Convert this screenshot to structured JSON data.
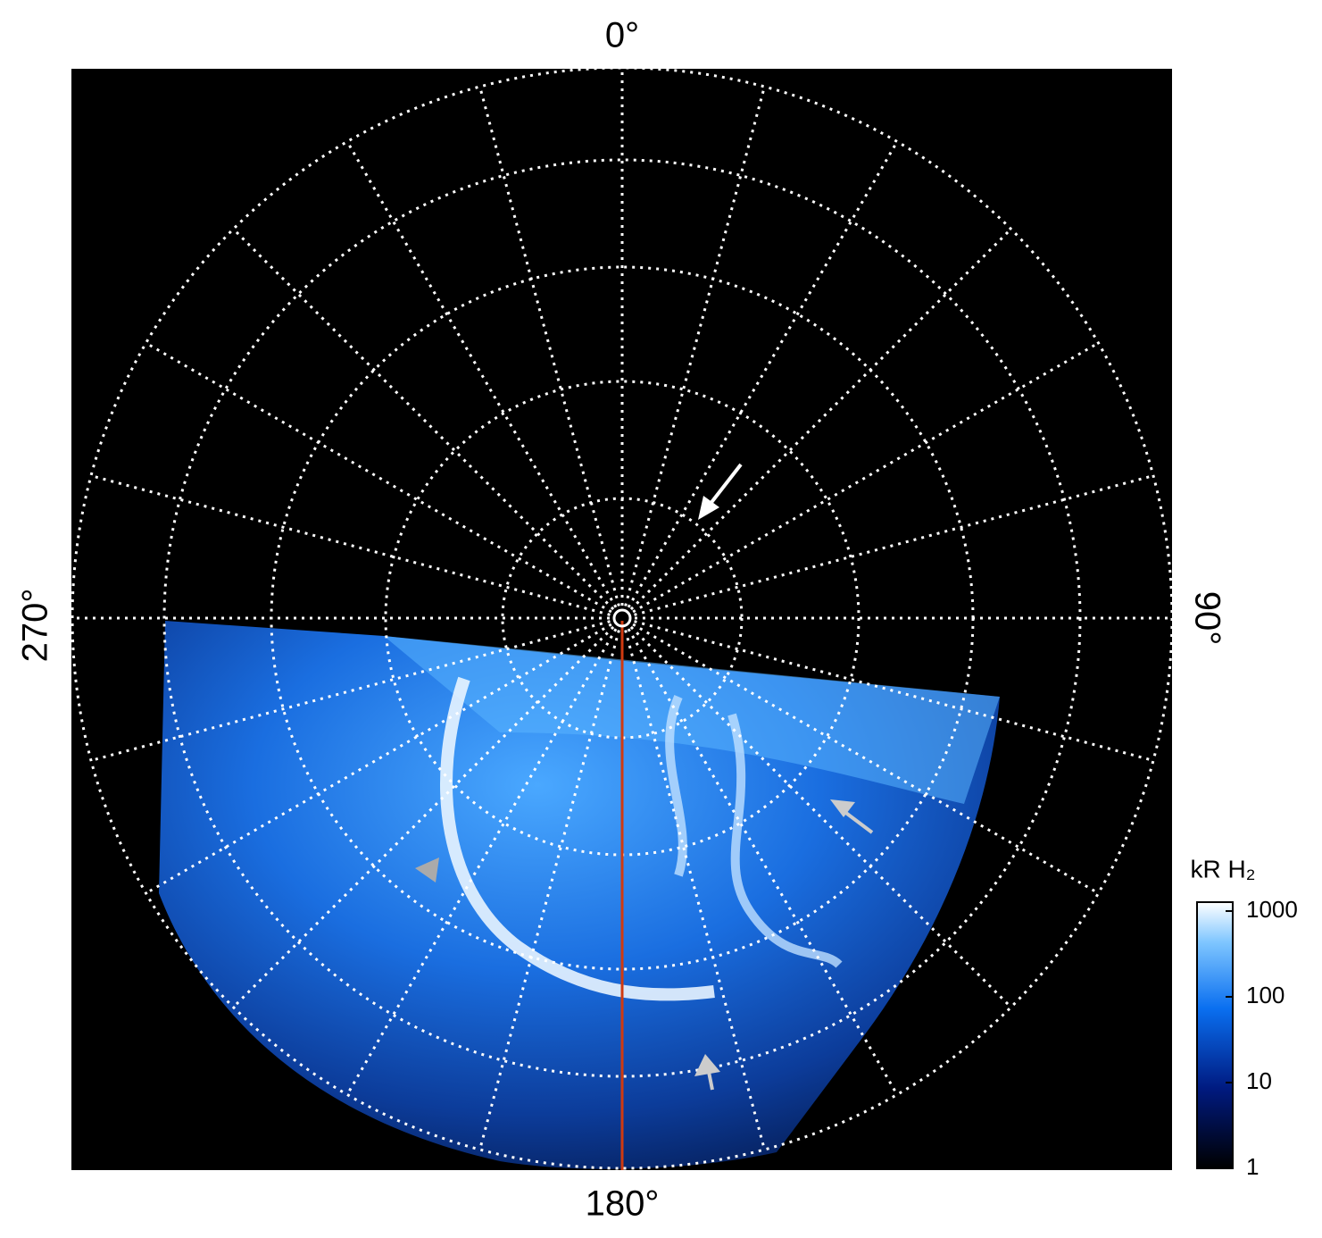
{
  "chart_data": {
    "type": "polar-image",
    "angle_labels": [
      "0°",
      "90°",
      "180°",
      "270°"
    ],
    "colorbar": {
      "label": "kR H₂",
      "lim": [
        1,
        1270
      ],
      "ticks": [
        1,
        10,
        100,
        1000
      ],
      "log_scale": true
    }
  }
}
